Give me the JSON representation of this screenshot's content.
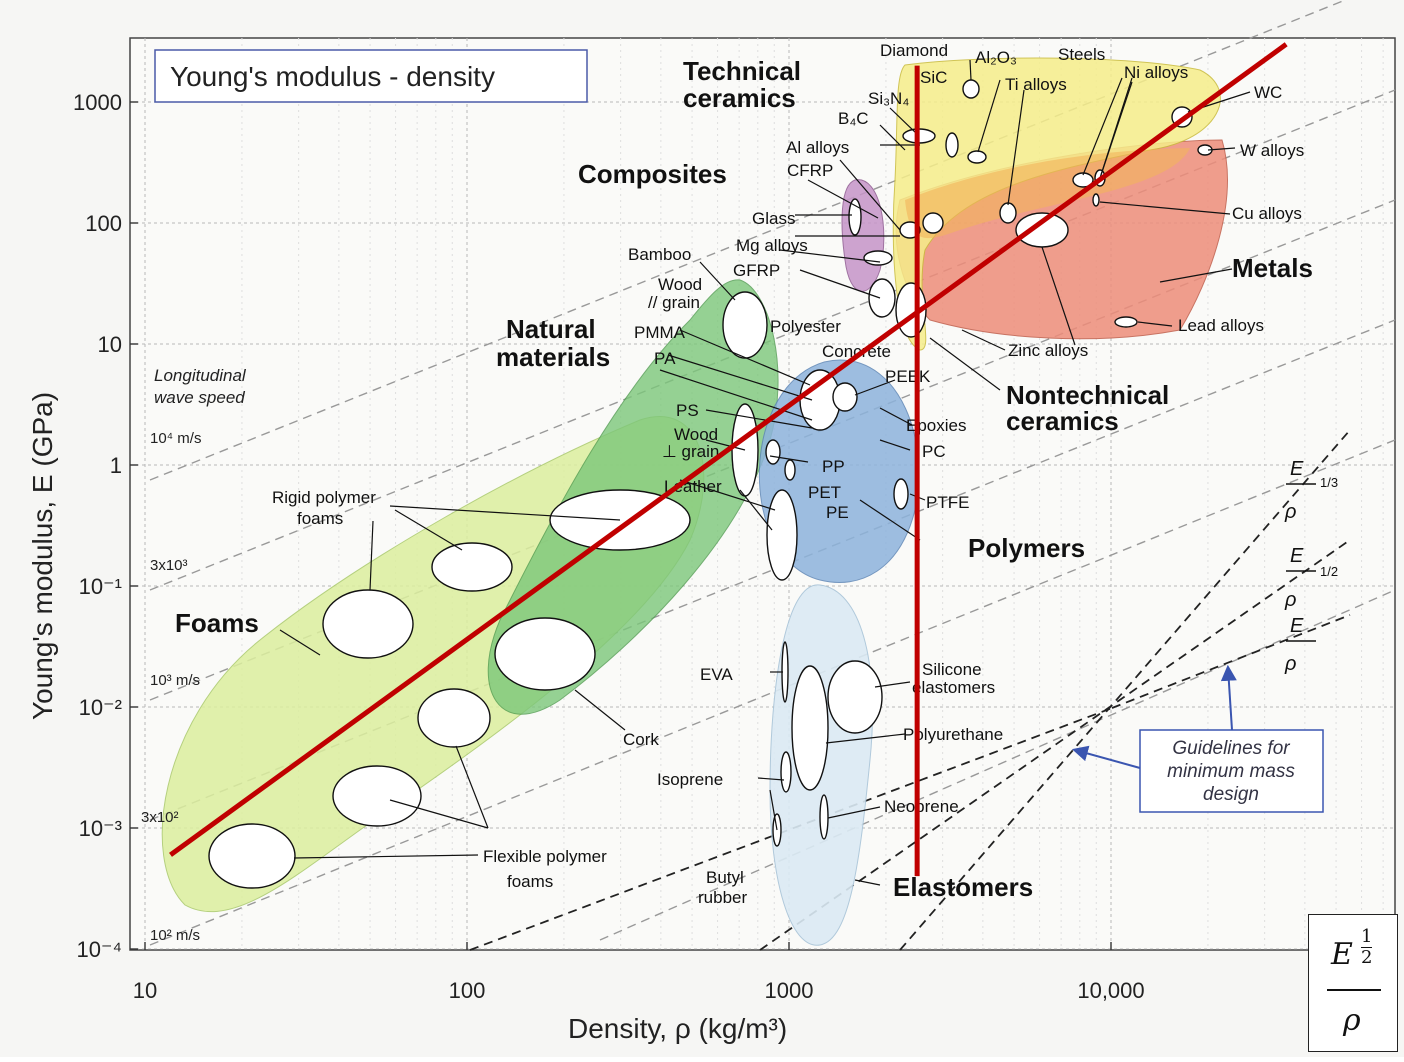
{
  "chart_data": {
    "type": "scatter",
    "title": "Young's modulus - density",
    "xlabel": "Density, ρ (kg/m³)",
    "ylabel": "Young's modulus, E (GPa)",
    "x_scale": "log",
    "y_scale": "log",
    "xlim": [
      10,
      50000
    ],
    "ylim": [
      0.0001,
      2000
    ],
    "x_ticks": [
      "10",
      "100",
      "1000",
      "10,000"
    ],
    "y_ticks": [
      "1000",
      "100",
      "10",
      "1",
      "10⁻¹",
      "10⁻²",
      "10⁻³",
      "10⁻⁴"
    ],
    "grid": true,
    "families": [
      {
        "name": "Foams",
        "color": "#d9ec9a"
      },
      {
        "name": "Natural materials",
        "color": "#7fc97a"
      },
      {
        "name": "Polymers",
        "color": "#8fb4dc"
      },
      {
        "name": "Elastomers",
        "color": "#d7e8f3"
      },
      {
        "name": "Composites",
        "color": "#c89acb"
      },
      {
        "name": "Technical ceramics",
        "color": "#f6ef8a"
      },
      {
        "name": "Nontechnical ceramics",
        "color": "#f6ef8a"
      },
      {
        "name": "Metals",
        "color": "#ef8f7c"
      }
    ],
    "family_labels": {
      "technical": "Technical",
      "ceramics": "ceramics",
      "composites": "Composites",
      "natural": "Natural",
      "materials": "materials",
      "metals": "Metals",
      "nontechnical": "Nontechnical",
      "nceramics": "ceramics",
      "polymers": "Polymers",
      "elastomers": "Elastomers",
      "foams": "Foams"
    },
    "material_labels": {
      "diamond": "Diamond",
      "al2o3": "Al₂O₃",
      "steels": "Steels",
      "nialloys": "Ni alloys",
      "sic": "SiC",
      "tialloys": "Ti alloys",
      "si3n4": "Si₃N₄",
      "b4c": "B₄C",
      "wc": "WC",
      "walloys": "W alloys",
      "alalloys": "Al alloys",
      "cfrp": "CFRP",
      "glass": "Glass",
      "mgalloys": "Mg alloys",
      "gfrp": "GFRP",
      "bamboo": "Bamboo",
      "woodpar1": "Wood",
      "woodpar2": "// grain",
      "pmma": "PMMA",
      "pa": "PA",
      "polyester": "Polyester",
      "concrete": "Concrete",
      "peek": "PEEK",
      "ps": "PS",
      "epoxies": "Epoxies",
      "pc": "PC",
      "woodperp1": "Wood",
      "woodperp2": "⊥ grain",
      "pp": "PP",
      "pet": "PET",
      "pe": "PE",
      "ptfe": "PTFE",
      "leather": "Leather",
      "rigidfoam1": "Rigid polymer",
      "rigidfoam2": "foams",
      "cork": "Cork",
      "cualloys": "Cu alloys",
      "leadalloys": "Lead alloys",
      "zincalloys": "Zinc alloys",
      "eva": "EVA",
      "silicone1": "Silicone",
      "silicone2": "elastomers",
      "polyurethane": "Polyurethane",
      "isoprene": "Isoprene",
      "neoprene": "Neoprene",
      "butyl1": "Butyl",
      "butyl2": "rubber",
      "flexfoam1": "Flexible polymer",
      "flexfoam2": "foams"
    },
    "wave_speed_labels": {
      "title1": "Longitudinal",
      "title2": "wave speed",
      "v1": "10⁴ m/s",
      "v2": "3x10³",
      "v3": "10³ m/s",
      "v4": "3x10²",
      "v5": "10² m/s"
    },
    "guideline_labels": {
      "e13_num": "E",
      "e13_exp": "1/3",
      "e13_den": "ρ",
      "e12_num": "E",
      "e12_exp": "1/2",
      "e12_den": "ρ",
      "e1_num": "E",
      "e1_den": "ρ",
      "box1": "Guidelines for",
      "box2": "minimum mass",
      "box3": "design"
    },
    "overlay_lines": [
      {
        "name": "guideline-diagonal",
        "color": "#c00000",
        "points": [
          [
            12,
            0.0006
          ],
          [
            35000,
            3000
          ]
        ]
      },
      {
        "name": "density-marker",
        "color": "#c00000",
        "x": 2500,
        "y_range": [
          0.0004,
          2000
        ]
      }
    ],
    "inset": {
      "numerator": "E",
      "exponent_num": "1",
      "exponent_den": "2",
      "denominator": "ρ"
    }
  }
}
